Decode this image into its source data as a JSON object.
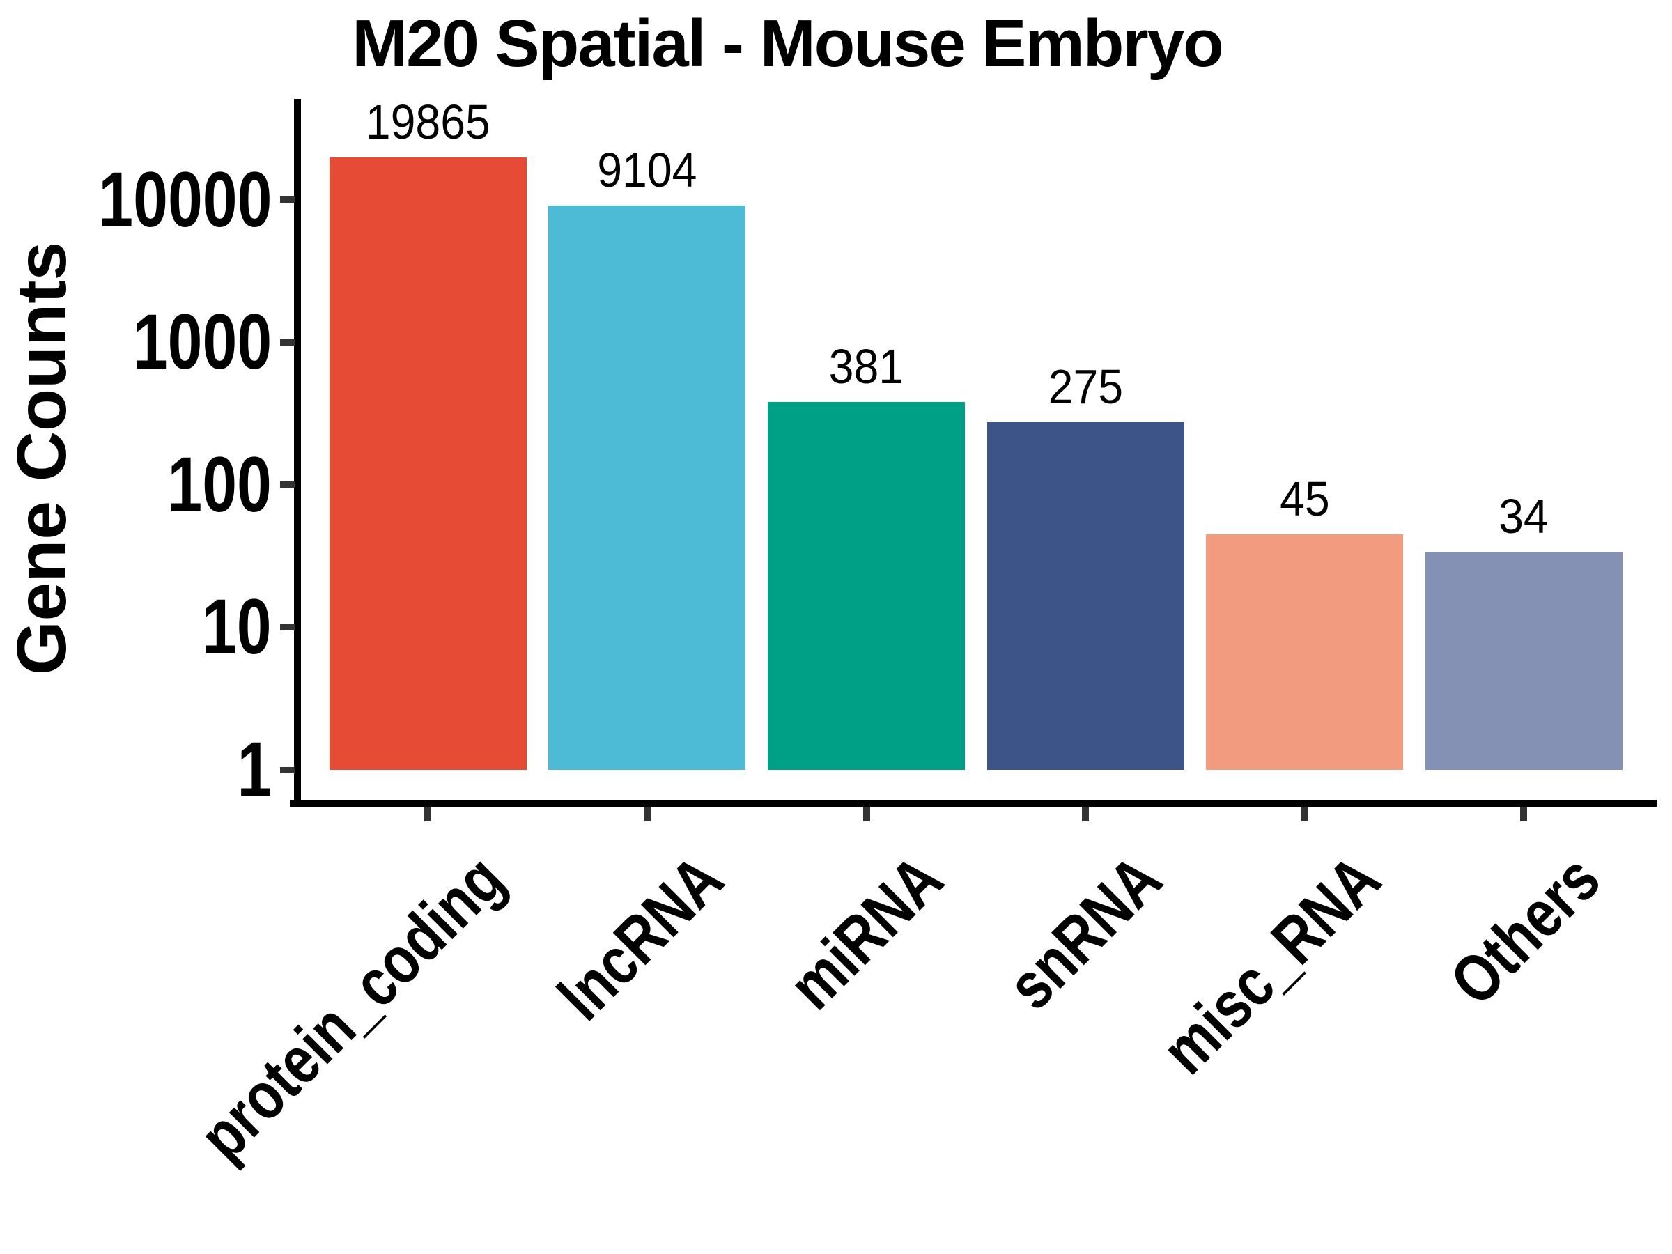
{
  "chart_data": {
    "type": "bar",
    "title": "M20 Spatial - Mouse Embryo",
    "ylabel": "Gene Counts",
    "xlabel": "",
    "categories": [
      "protein_coding",
      "lncRNA",
      "miRNA",
      "snRNA",
      "misc_RNA",
      "Others"
    ],
    "values": [
      19865,
      9104,
      381,
      275,
      45,
      34
    ],
    "value_labels": [
      "19865",
      "9104",
      "381",
      "275",
      "45",
      "34"
    ],
    "bar_colors": [
      "#E64B35",
      "#4DBBD5",
      "#00A087",
      "#3C5488",
      "#F39B7F",
      "#8491B4"
    ],
    "y_scale": "log10",
    "y_ticks": [
      1,
      10,
      100,
      1000,
      10000
    ],
    "y_tick_labels": [
      "1",
      "10",
      "100",
      "1000",
      "10000"
    ],
    "ylim": [
      1,
      40000
    ],
    "grid": false,
    "legend": false,
    "bar_baseline_value": 1,
    "colors": {
      "axis": "#000000",
      "tick": "#333333",
      "text": "#000000",
      "background": "#FFFFFF"
    }
  }
}
